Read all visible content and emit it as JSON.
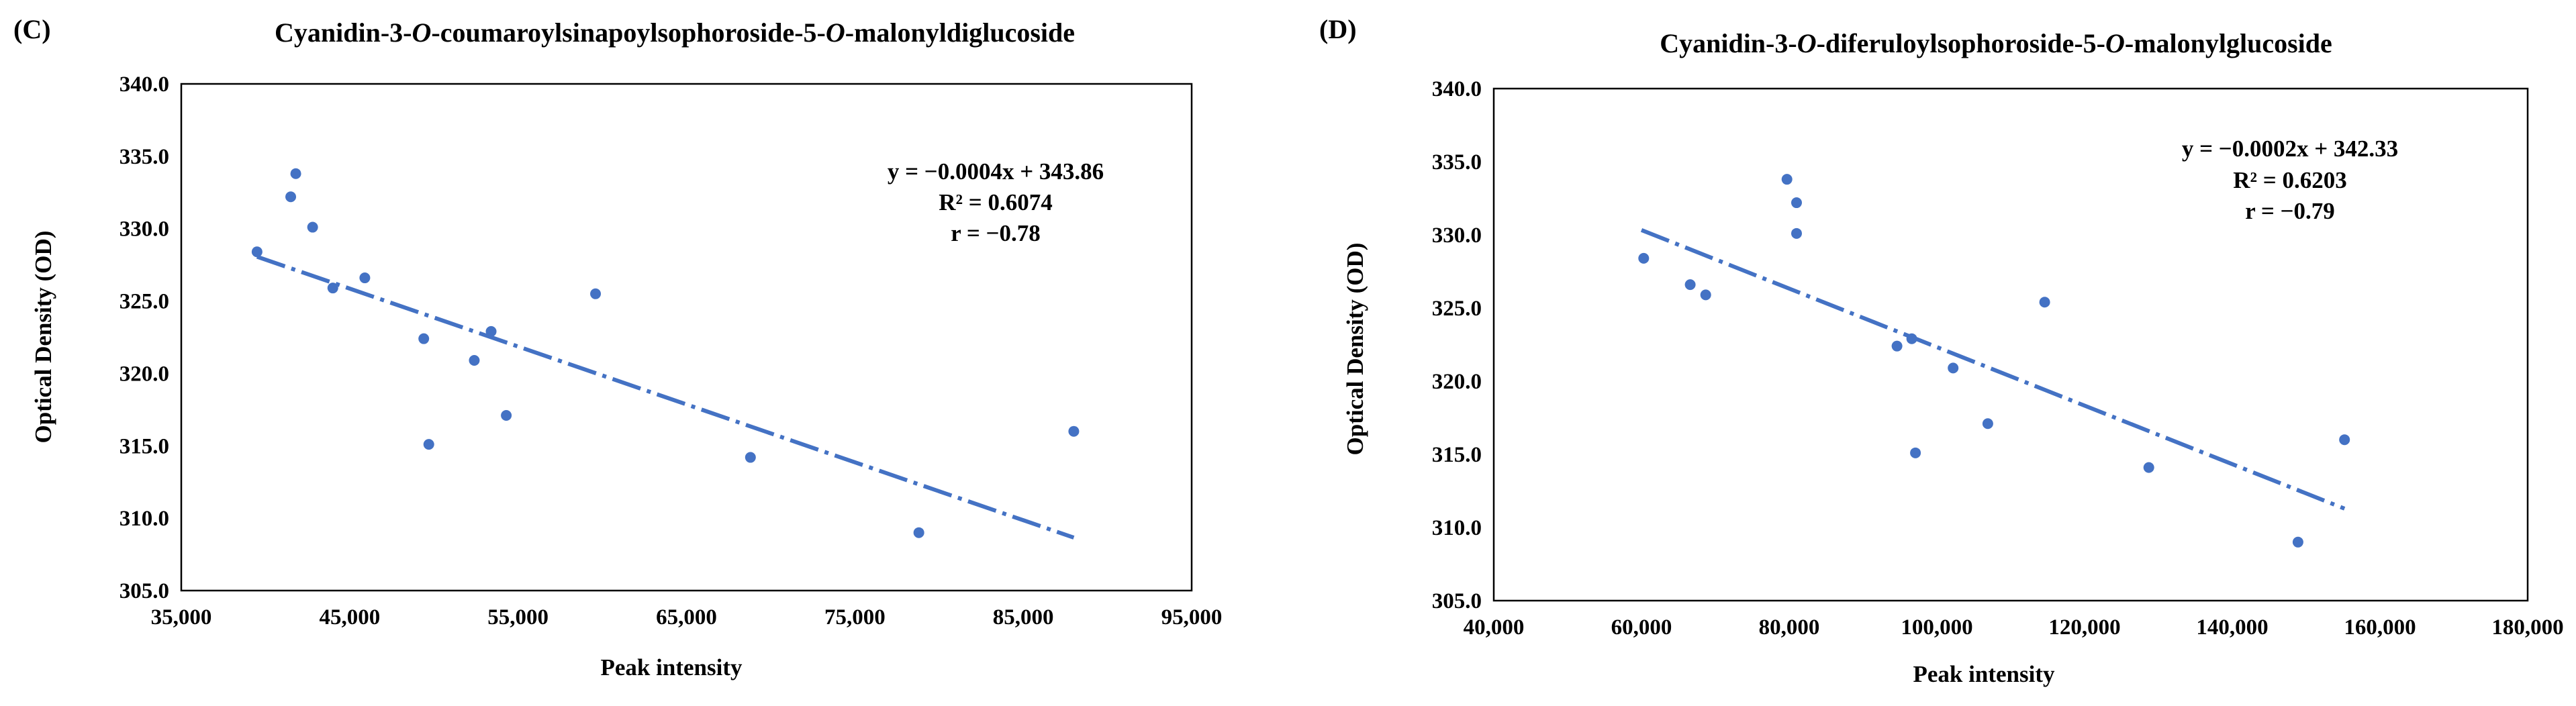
{
  "chart_data": [
    {
      "type": "scatter",
      "panel_label": "(C)",
      "title_parts": [
        "Cyanidin-3-",
        "O",
        "-coumaroylsinapoylsophoroside-5-",
        "O",
        "-malonyldiglucoside"
      ],
      "xlabel": "Peak intensity",
      "ylabel": "Optical Density (OD)",
      "xlim": [
        35000,
        95000
      ],
      "ylim": [
        305,
        340
      ],
      "x_ticks": [
        35000,
        45000,
        55000,
        65000,
        75000,
        85000,
        95000
      ],
      "x_tick_labels": [
        "35,000",
        "45,000",
        "55,000",
        "65,000",
        "75,000",
        "85,000",
        "95,000"
      ],
      "y_ticks": [
        305,
        310,
        315,
        320,
        325,
        330,
        335,
        340
      ],
      "y_tick_labels": [
        "305.0",
        "310.0",
        "315.0",
        "320.0",
        "325.0",
        "330.0",
        "335.0",
        "340.0"
      ],
      "points": [
        [
          39500,
          328.4
        ],
        [
          41500,
          332.2
        ],
        [
          41800,
          333.8
        ],
        [
          42800,
          330.1
        ],
        [
          44000,
          325.9
        ],
        [
          45900,
          326.6
        ],
        [
          49400,
          322.4
        ],
        [
          49700,
          315.1
        ],
        [
          52400,
          320.9
        ],
        [
          53400,
          322.9
        ],
        [
          54300,
          317.1
        ],
        [
          59600,
          325.5
        ],
        [
          68800,
          314.2
        ],
        [
          78800,
          309.0
        ],
        [
          88000,
          316.0
        ]
      ],
      "trendline": {
        "slope": -0.0004,
        "intercept": 343.86,
        "x_range": [
          39500,
          88000
        ]
      },
      "annotations": [
        "y = −0.0004x + 343.86",
        "R² = 0.6074",
        "r = −0.78"
      ]
    },
    {
      "type": "scatter",
      "panel_label": "(D)",
      "title_parts": [
        "Cyanidin-3-",
        "O",
        "-diferuloylsophoroside-5-",
        "O",
        "-malonylglucoside"
      ],
      "xlabel": "Peak intensity",
      "ylabel": "Optical Density (OD)",
      "xlim": [
        40000,
        180000
      ],
      "ylim": [
        305,
        340
      ],
      "x_ticks": [
        40000,
        60000,
        80000,
        100000,
        120000,
        140000,
        160000,
        180000
      ],
      "x_tick_labels": [
        "40,000",
        "60,000",
        "80,000",
        "100,000",
        "120,000",
        "140,000",
        "160,000",
        "180,000"
      ],
      "y_ticks": [
        305,
        310,
        315,
        320,
        325,
        330,
        335,
        340
      ],
      "y_tick_labels": [
        "305.0",
        "310.0",
        "315.0",
        "320.0",
        "325.0",
        "330.0",
        "335.0",
        "340.0"
      ],
      "points": [
        [
          60300,
          328.4
        ],
        [
          66600,
          326.6
        ],
        [
          68700,
          325.9
        ],
        [
          79700,
          333.8
        ],
        [
          81000,
          332.2
        ],
        [
          81000,
          330.1
        ],
        [
          94600,
          322.4
        ],
        [
          96600,
          322.9
        ],
        [
          97100,
          315.1
        ],
        [
          102200,
          320.9
        ],
        [
          106900,
          317.1
        ],
        [
          114600,
          325.4
        ],
        [
          128700,
          314.1
        ],
        [
          148900,
          309.0
        ],
        [
          155200,
          316.0
        ]
      ],
      "trendline": {
        "slope": -0.0002,
        "intercept": 342.33,
        "x_range": [
          60000,
          155200
        ]
      },
      "annotations": [
        "y = −0.0002x + 342.33",
        "R² = 0.6203",
        "r = −0.79"
      ]
    }
  ]
}
